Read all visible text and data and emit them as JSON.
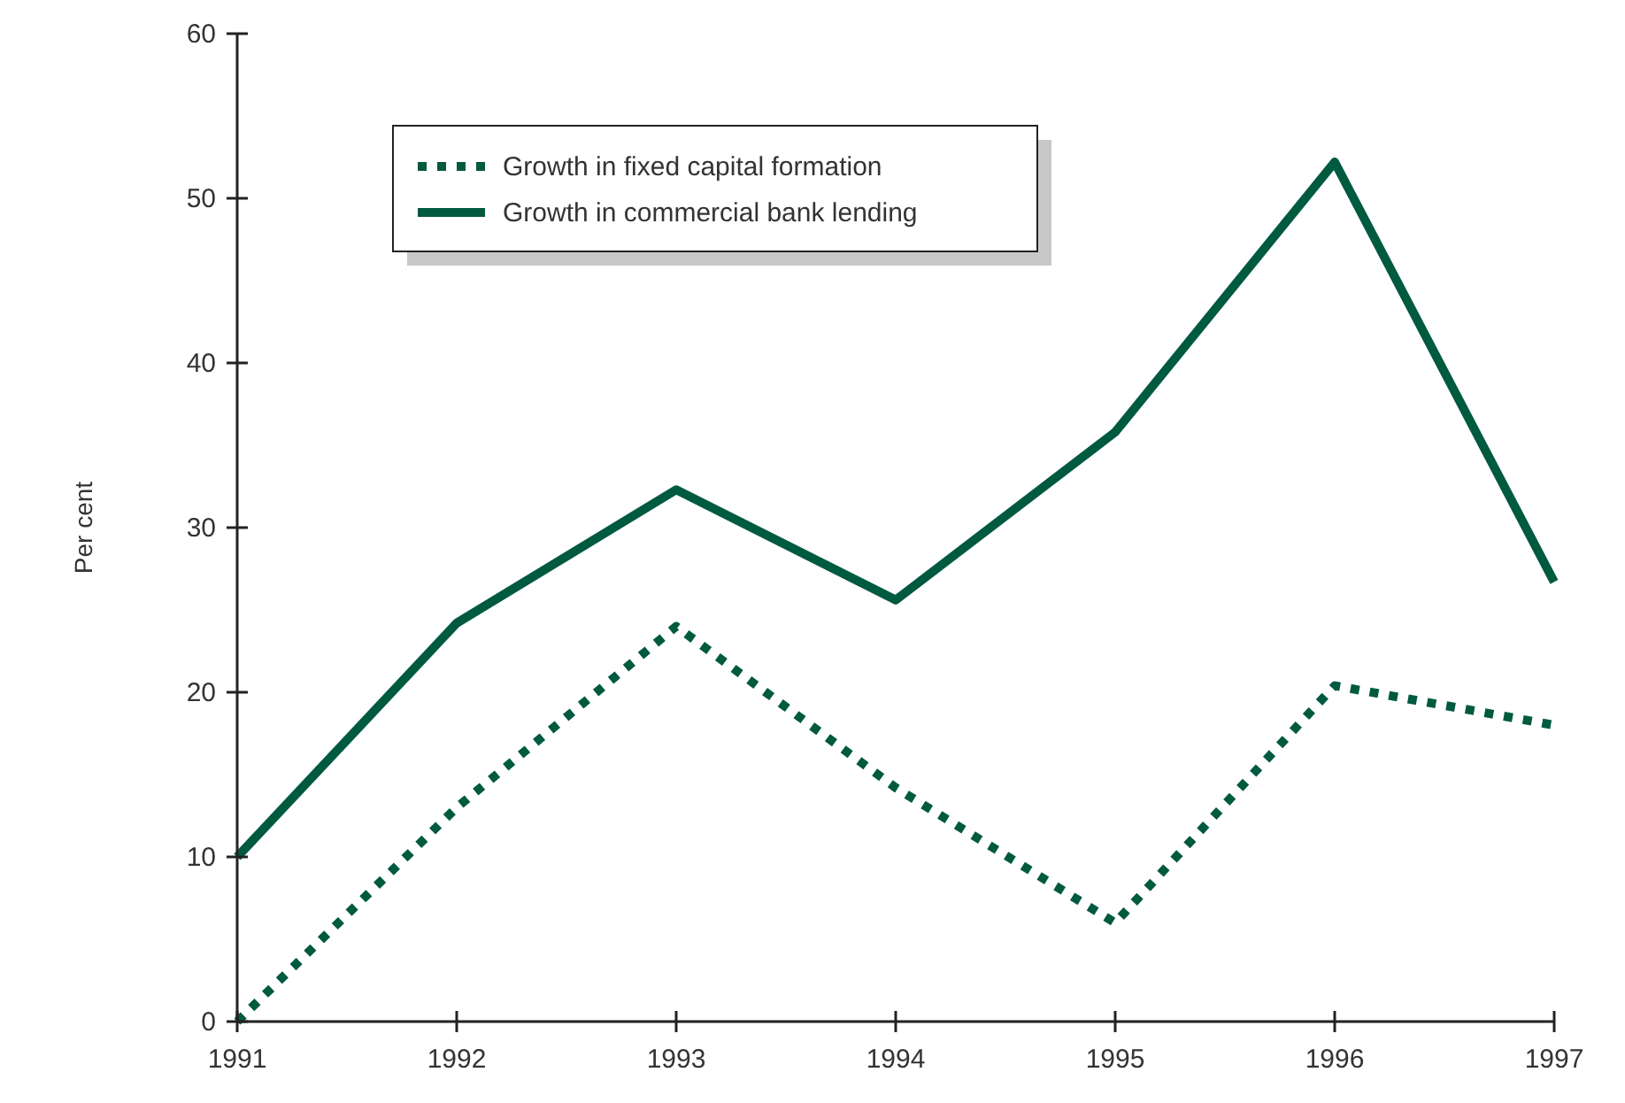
{
  "chart_data": {
    "type": "line",
    "ylabel": "Per cent",
    "categories": [
      "1991",
      "1992",
      "1993",
      "1994",
      "1995",
      "1996",
      "1997"
    ],
    "series": [
      {
        "name": "Growth in fixed capital formation",
        "color": "#005a40",
        "line_style": "dotted",
        "values": [
          0,
          13,
          24,
          14.2,
          6,
          20.4,
          18
        ]
      },
      {
        "name": "Growth in commercial bank lending",
        "color": "#005a40",
        "line_style": "solid",
        "values": [
          10,
          24.2,
          32.3,
          25.6,
          35.8,
          52.2,
          26.7
        ]
      }
    ],
    "ylim": [
      0,
      60
    ],
    "yticks": [
      0,
      10,
      20,
      30,
      40,
      50,
      60
    ],
    "grid": false,
    "legend": "top left"
  }
}
